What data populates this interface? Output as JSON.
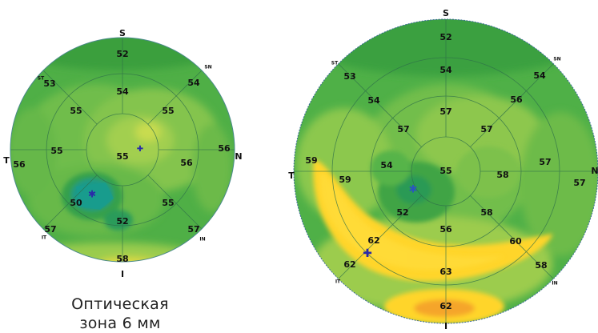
{
  "left_map": {
    "labels": {
      "S": "S",
      "ST": "ST",
      "SN": "SN",
      "T": "T",
      "N": "N",
      "IT": "IT",
      "IN": "IN",
      "I": "I"
    },
    "values": {
      "center": "55",
      "inner_s": "54",
      "inner_n": "56",
      "inner_i": "52",
      "inner_t": "55",
      "inner_sn": "55",
      "inner_st": "55",
      "inner_in": "55",
      "inner_it": "50",
      "outer_s": "52",
      "outer_sn": "54",
      "outer_n": "56",
      "outer_in": "57",
      "outer_i": "58",
      "outer_it": "57",
      "outer_t": "56",
      "outer_st": "53"
    },
    "markers": {
      "pachy_min": "✱",
      "apex": "✚"
    }
  },
  "right_map": {
    "labels": {
      "S": "S",
      "ST": "ST",
      "SN": "SN",
      "T": "T",
      "N": "N",
      "IT": "IT",
      "IN": "IN",
      "I": "I"
    },
    "values": {
      "center": "55",
      "r2_s": "57",
      "r2_sn": "57",
      "r2_n": "58",
      "r2_in": "58",
      "r2_i": "56",
      "r2_it": "52",
      "r2_t": "54",
      "r2_st": "57",
      "r3_s": "54",
      "r3_sn": "56",
      "r3_n": "57",
      "r3_in": "60",
      "r3_i": "63",
      "r3_it": "62",
      "r3_t": "59",
      "r3_st": "54",
      "r4_s": "52",
      "r4_sn": "54",
      "r4_n": "57",
      "r4_in": "58",
      "r4_i": "62",
      "r4_it": "62",
      "r4_t": "59",
      "r4_st": "53"
    },
    "markers": {
      "pachy_min": "✱",
      "apex": "✚"
    }
  },
  "caption": {
    "line1": "Оптическая",
    "line2": "зона 6 мм"
  },
  "colors": {
    "green_dark": "#2f9a3c",
    "green": "#58b84a",
    "green_light": "#8cc94f",
    "yellow_green": "#c2d94a",
    "yellow": "#ffd52a",
    "orange": "#f5a52a",
    "teal": "#1c9a88",
    "grid": "#2e6e4a",
    "marker": "#2a2aa8"
  }
}
